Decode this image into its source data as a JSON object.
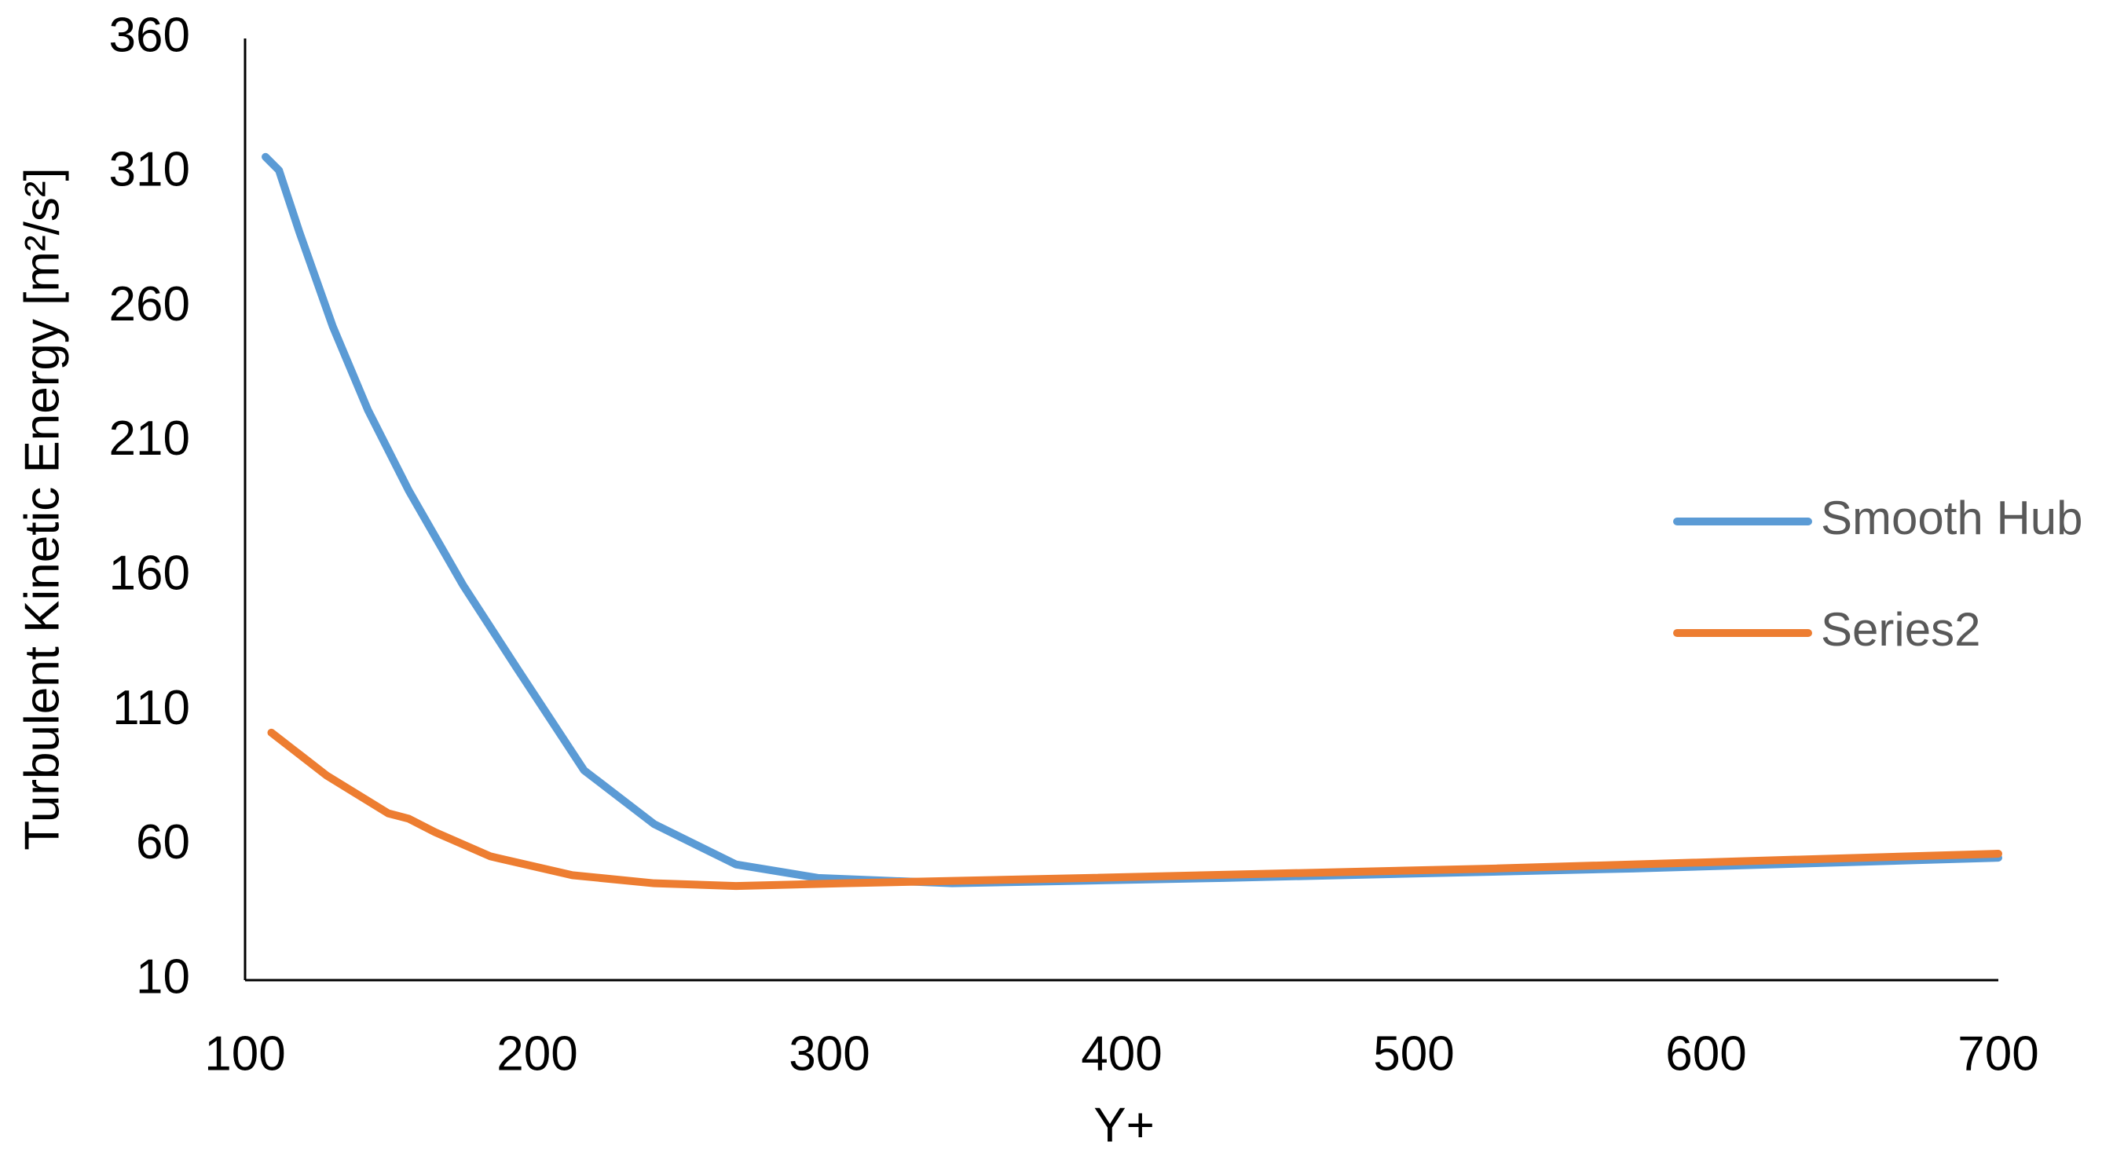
{
  "chart_data": {
    "type": "line",
    "x_label": "Y+",
    "y_label": "Turbulent Kinetic Energy [m²/s²]",
    "xlim": [
      100,
      700
    ],
    "xticks": [
      100,
      200,
      300,
      400,
      500,
      600,
      700
    ],
    "ylim": [
      10,
      360
    ],
    "yticks": [
      10,
      60,
      110,
      160,
      210,
      260,
      310,
      360
    ],
    "grid": false,
    "legend": "right",
    "series": [
      {
        "name": "Smooth Hub",
        "color": "#5b9bd5",
        "x": [
          107,
          111.6,
          118.6,
          130,
          142,
          156,
          174.5,
          193,
          216,
          240,
          268,
          296,
          342,
          435,
          575,
          700
        ],
        "values": [
          316,
          311,
          288,
          253,
          222,
          192,
          157,
          126,
          88,
          68,
          53,
          48,
          46,
          48,
          51.5,
          55.5
        ]
      },
      {
        "name": "Series2",
        "color": "#ed7d31",
        "x": [
          109,
          128,
          149,
          156,
          165,
          184,
          212,
          240,
          268,
          305,
          389,
          528,
          700
        ],
        "values": [
          102,
          86,
          72,
          70,
          65,
          56,
          49,
          46,
          45,
          46,
          48,
          51.5,
          57
        ]
      }
    ]
  }
}
